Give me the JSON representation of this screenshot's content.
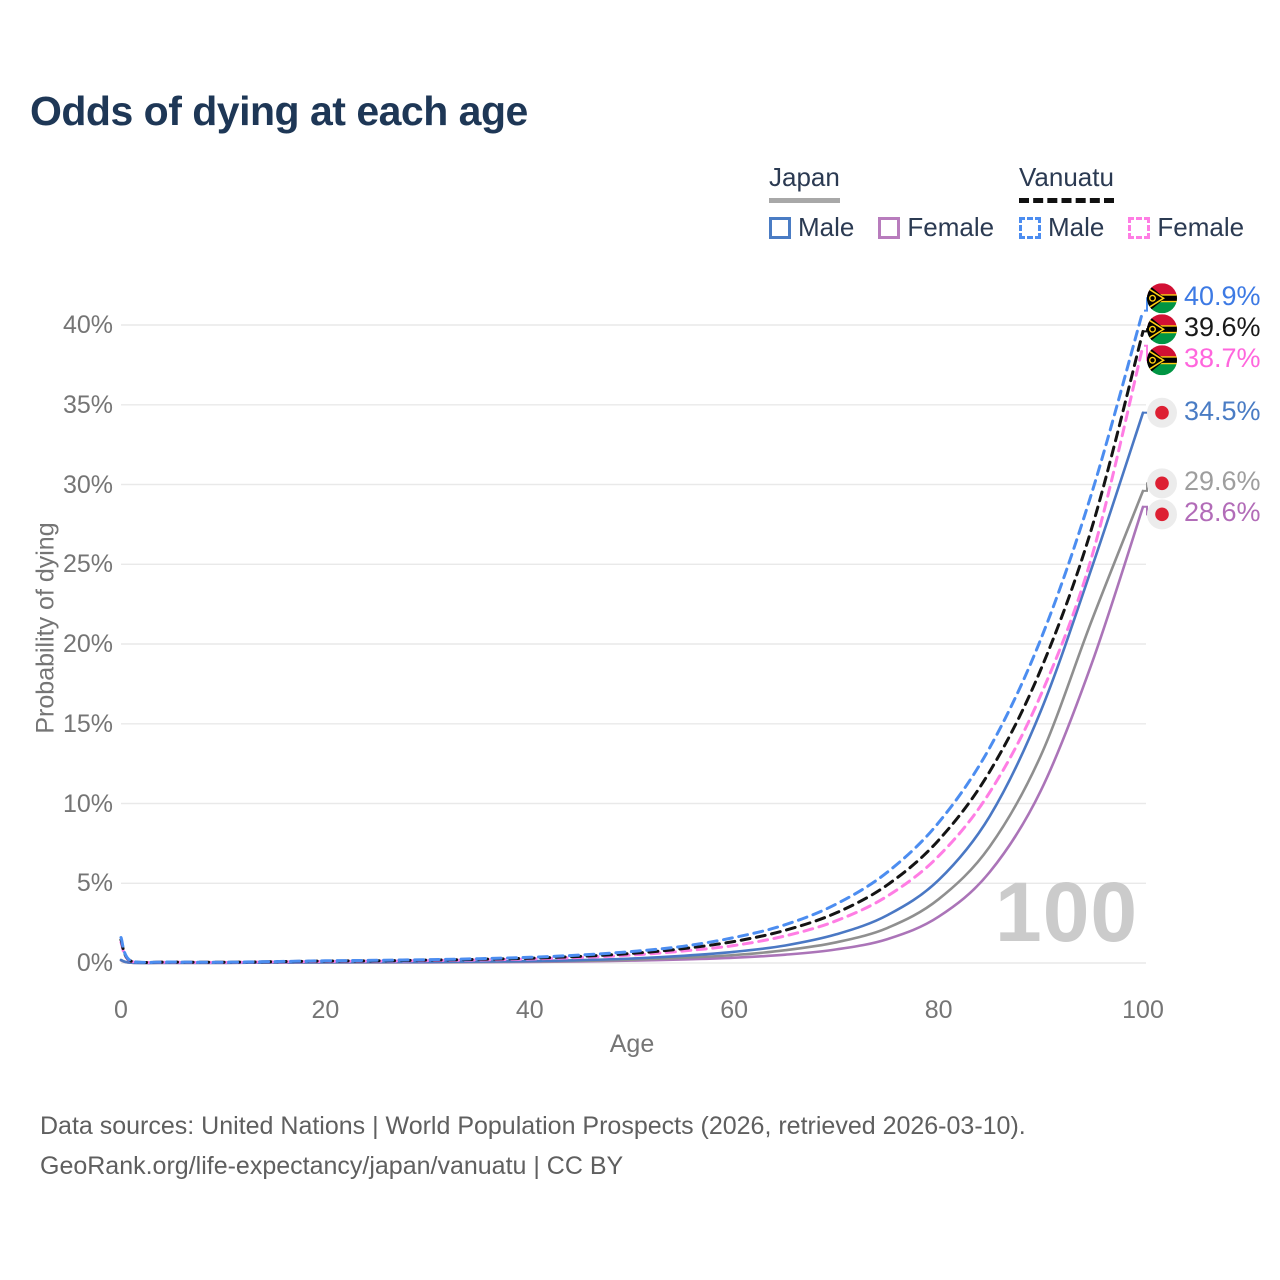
{
  "header": {
    "title": "Odds of dying at each age"
  },
  "legend": {
    "japan": {
      "title": "Japan",
      "male": "Male",
      "female": "Female"
    },
    "vanuatu": {
      "title": "Vanuatu",
      "male": "Male",
      "female": "Female"
    },
    "colors": {
      "japan_underline": "#a8a8a8",
      "vanuatu_underline": "#111111",
      "japan_male": "#4a7cc4",
      "japan_female": "#b87cbd",
      "vanuatu_male": "#4c8df0",
      "vanuatu_female": "#ff7de4"
    }
  },
  "chart_data": {
    "type": "line",
    "title": "Odds of dying at each age",
    "xlabel": "Age",
    "ylabel": "Probability of dying",
    "xlim": [
      0,
      100
    ],
    "ylim": [
      0,
      42
    ],
    "x_ticks": [
      0,
      20,
      40,
      60,
      80,
      100
    ],
    "y_ticks": [
      0,
      5,
      10,
      15,
      20,
      25,
      30,
      35,
      40
    ],
    "y_tick_labels": [
      "0%",
      "5%",
      "10%",
      "15%",
      "20%",
      "25%",
      "30%",
      "35%",
      "40%"
    ],
    "x_tick_labels": [
      "0",
      "20",
      "40",
      "60",
      "80",
      "100"
    ],
    "grid": "horizontal",
    "legend_position": "top-right",
    "age_annotation": "100",
    "series": [
      {
        "name": "Japan Female",
        "country": "Japan",
        "group": "female",
        "color": "#ab74b8",
        "dash": false,
        "line_color_note": "solid mauve",
        "flag": "japan",
        "end_label": "28.6%",
        "end_value": 28.6,
        "end_label_color": "#b26cb8",
        "points": [
          [
            0,
            0.17
          ],
          [
            1,
            0.02
          ],
          [
            5,
            0.01
          ],
          [
            10,
            0.01
          ],
          [
            15,
            0.02
          ],
          [
            20,
            0.03
          ],
          [
            25,
            0.03
          ],
          [
            30,
            0.04
          ],
          [
            35,
            0.05
          ],
          [
            40,
            0.07
          ],
          [
            45,
            0.1
          ],
          [
            50,
            0.15
          ],
          [
            55,
            0.22
          ],
          [
            60,
            0.33
          ],
          [
            65,
            0.52
          ],
          [
            70,
            0.85
          ],
          [
            75,
            1.5
          ],
          [
            80,
            2.9
          ],
          [
            85,
            5.7
          ],
          [
            90,
            10.8
          ],
          [
            95,
            18.8
          ],
          [
            100,
            28.6
          ]
        ]
      },
      {
        "name": "Japan All",
        "country": "Japan",
        "group": "all",
        "color": "#8f8f8f",
        "dash": false,
        "line_color_note": "solid gray",
        "flag": "japan",
        "end_label": "29.6%",
        "end_value": 29.6,
        "end_label_color": "#9e9e9e",
        "points": [
          [
            0,
            0.18
          ],
          [
            1,
            0.02
          ],
          [
            5,
            0.01
          ],
          [
            10,
            0.01
          ],
          [
            15,
            0.025
          ],
          [
            20,
            0.04
          ],
          [
            25,
            0.045
          ],
          [
            30,
            0.055
          ],
          [
            35,
            0.07
          ],
          [
            40,
            0.095
          ],
          [
            45,
            0.14
          ],
          [
            50,
            0.21
          ],
          [
            55,
            0.33
          ],
          [
            60,
            0.5
          ],
          [
            65,
            0.8
          ],
          [
            70,
            1.3
          ],
          [
            75,
            2.2
          ],
          [
            80,
            4.0
          ],
          [
            85,
            7.3
          ],
          [
            90,
            13.0
          ],
          [
            95,
            21.5
          ],
          [
            100,
            29.6
          ]
        ]
      },
      {
        "name": "Japan Male",
        "country": "Japan",
        "group": "male",
        "color": "#4a78c4",
        "dash": false,
        "line_color_note": "solid steel blue",
        "flag": "japan",
        "end_label": "34.5%",
        "end_value": 34.5,
        "end_label_color": "#4a7cc4",
        "points": [
          [
            0,
            0.19
          ],
          [
            1,
            0.02
          ],
          [
            5,
            0.01
          ],
          [
            10,
            0.01
          ],
          [
            15,
            0.03
          ],
          [
            20,
            0.05
          ],
          [
            25,
            0.06
          ],
          [
            30,
            0.07
          ],
          [
            35,
            0.09
          ],
          [
            40,
            0.12
          ],
          [
            45,
            0.18
          ],
          [
            50,
            0.28
          ],
          [
            55,
            0.45
          ],
          [
            60,
            0.7
          ],
          [
            65,
            1.1
          ],
          [
            70,
            1.8
          ],
          [
            75,
            3.0
          ],
          [
            80,
            5.2
          ],
          [
            85,
            9.2
          ],
          [
            90,
            15.8
          ],
          [
            95,
            24.8
          ],
          [
            100,
            34.5
          ]
        ]
      },
      {
        "name": "Vanuatu Female",
        "country": "Vanuatu",
        "group": "female",
        "color": "#ff7de4",
        "dash": true,
        "line_color_note": "dashed pink",
        "flag": "vanuatu",
        "end_label": "38.7%",
        "end_value": 38.7,
        "end_label_color": "#ff66dd",
        "points": [
          [
            0,
            1.3
          ],
          [
            1,
            0.1
          ],
          [
            5,
            0.05
          ],
          [
            10,
            0.04
          ],
          [
            15,
            0.07
          ],
          [
            20,
            0.1
          ],
          [
            25,
            0.12
          ],
          [
            30,
            0.15
          ],
          [
            35,
            0.19
          ],
          [
            40,
            0.25
          ],
          [
            45,
            0.35
          ],
          [
            50,
            0.5
          ],
          [
            55,
            0.75
          ],
          [
            60,
            1.1
          ],
          [
            65,
            1.7
          ],
          [
            70,
            2.65
          ],
          [
            75,
            4.2
          ],
          [
            80,
            6.7
          ],
          [
            85,
            10.7
          ],
          [
            90,
            16.8
          ],
          [
            95,
            25.5
          ],
          [
            100,
            38.7
          ]
        ]
      },
      {
        "name": "Vanuatu All",
        "country": "Vanuatu",
        "group": "all",
        "color": "#141414",
        "dash": true,
        "line_color_note": "dashed black",
        "flag": "vanuatu",
        "end_label": "39.6%",
        "end_value": 39.6,
        "end_label_color": "#1a1a1a",
        "points": [
          [
            0,
            1.45
          ],
          [
            1,
            0.11
          ],
          [
            5,
            0.055
          ],
          [
            10,
            0.045
          ],
          [
            15,
            0.08
          ],
          [
            20,
            0.12
          ],
          [
            25,
            0.14
          ],
          [
            30,
            0.18
          ],
          [
            35,
            0.23
          ],
          [
            40,
            0.3
          ],
          [
            45,
            0.42
          ],
          [
            50,
            0.6
          ],
          [
            55,
            0.9
          ],
          [
            60,
            1.35
          ],
          [
            65,
            2.05
          ],
          [
            70,
            3.15
          ],
          [
            75,
            4.9
          ],
          [
            80,
            7.7
          ],
          [
            85,
            12.0
          ],
          [
            90,
            18.4
          ],
          [
            95,
            27.3
          ],
          [
            100,
            39.6
          ]
        ]
      },
      {
        "name": "Vanuatu Male",
        "country": "Vanuatu",
        "group": "male",
        "color": "#4c8df0",
        "dash": true,
        "line_color_note": "dashed bright blue",
        "flag": "vanuatu",
        "end_label": "40.9%",
        "end_value": 40.9,
        "end_label_color": "#3d7ae4",
        "points": [
          [
            0,
            1.6
          ],
          [
            1,
            0.12
          ],
          [
            5,
            0.06
          ],
          [
            10,
            0.05
          ],
          [
            15,
            0.09
          ],
          [
            20,
            0.14
          ],
          [
            25,
            0.17
          ],
          [
            30,
            0.21
          ],
          [
            35,
            0.27
          ],
          [
            40,
            0.36
          ],
          [
            45,
            0.5
          ],
          [
            50,
            0.72
          ],
          [
            55,
            1.05
          ],
          [
            60,
            1.6
          ],
          [
            65,
            2.4
          ],
          [
            70,
            3.7
          ],
          [
            75,
            5.7
          ],
          [
            80,
            8.8
          ],
          [
            85,
            13.5
          ],
          [
            90,
            20.3
          ],
          [
            95,
            29.5
          ],
          [
            100,
            40.9
          ]
        ]
      }
    ]
  },
  "footer": {
    "line1": "Data sources: United Nations | World Population Prospects (2026, retrieved 2026-03-10).",
    "line2": "GeoRank.org/life-expectancy/japan/vanuatu | CC BY"
  }
}
